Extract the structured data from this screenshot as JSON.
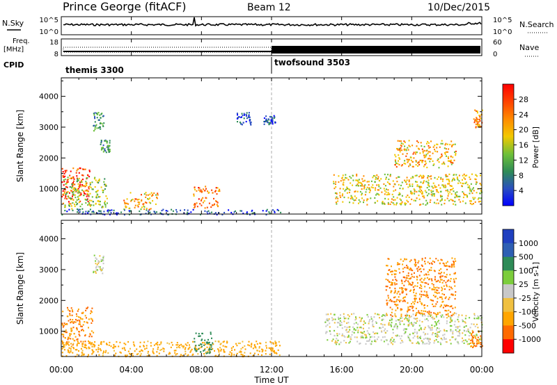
{
  "header": {
    "station": "Prince George (fitACF)",
    "beam": "Beam 12",
    "date": "10/Dec/2015"
  },
  "noise_panel": {
    "left_label": "N.Sky",
    "right_label": "N.Search",
    "left_ticks": [
      "10^5",
      "10^0"
    ],
    "right_ticks": [
      "10^5",
      "10^0"
    ]
  },
  "freq_panel": {
    "left_label_line1": "Freq.",
    "left_label_line2": "[MHz]",
    "right_label": "Nave",
    "left_ticks": [
      "18",
      "8"
    ],
    "right_ticks": [
      "60",
      "0"
    ],
    "cpid_label": "CPID"
  },
  "cpid_segments": [
    {
      "name": "themis 3300",
      "start_hour": 0
    },
    {
      "name": "twofsound 3503",
      "start_hour": 12
    }
  ],
  "time_axis": {
    "label": "Time UT",
    "ticks": [
      "00:00",
      "04:00",
      "08:00",
      "12:00",
      "16:00",
      "20:00",
      "00:00"
    ]
  },
  "colors": {
    "power": [
      "#0000ff",
      "#2a4ec0",
      "#2e8b57",
      "#6cbf3a",
      "#f2c800",
      "#ff8c00",
      "#ff4500",
      "#ff0000"
    ],
    "velocity": [
      "#1f3fbf",
      "#2e5fb3",
      "#2e8b57",
      "#7ccd3c",
      "#c8c8c8",
      "#f0c040",
      "#ffa500",
      "#ff6a00",
      "#ff0000"
    ]
  },
  "chart_data": [
    {
      "type": "heatmap",
      "name": "Power",
      "ylabel": "Slant Range [km]",
      "yticks": [
        1000,
        2000,
        3000,
        4000
      ],
      "ylim": [
        180,
        4600
      ],
      "xlim": [
        0,
        24
      ],
      "colorbar_label": "Power [dB]",
      "colorbar_ticks": [
        "28",
        "24",
        "20",
        "16",
        "12",
        "8",
        "4"
      ],
      "colorbar_range": [
        0,
        32
      ],
      "regions": [
        {
          "x": [
            0,
            1.6
          ],
          "y": [
            500,
            1700
          ],
          "value": 27
        },
        {
          "x": [
            0.1,
            2.6
          ],
          "y": [
            350,
            1400
          ],
          "value": 15
        },
        {
          "x": [
            0,
            12.5
          ],
          "y": [
            180,
            350
          ],
          "value": 6
        },
        {
          "x": [
            1.8,
            2.4
          ],
          "y": [
            2900,
            3500
          ],
          "value": 11
        },
        {
          "x": [
            2.2,
            2.8
          ],
          "y": [
            2200,
            2600
          ],
          "value": 10
        },
        {
          "x": [
            3.5,
            5.5
          ],
          "y": [
            350,
            900
          ],
          "value": 20
        },
        {
          "x": [
            7.5,
            9.0
          ],
          "y": [
            400,
            1100
          ],
          "value": 24
        },
        {
          "x": [
            10.0,
            10.8
          ],
          "y": [
            3100,
            3500
          ],
          "value": 6
        },
        {
          "x": [
            11.5,
            12.2
          ],
          "y": [
            3100,
            3400
          ],
          "value": 6
        },
        {
          "x": [
            15.5,
            24
          ],
          "y": [
            500,
            1500
          ],
          "value": 18
        },
        {
          "x": [
            19.0,
            22.5
          ],
          "y": [
            1700,
            2600
          ],
          "value": 20
        },
        {
          "x": [
            23.5,
            24
          ],
          "y": [
            3000,
            3600
          ],
          "value": 22
        }
      ]
    },
    {
      "type": "heatmap",
      "name": "Velocity",
      "ylabel": "Slant Range [km]",
      "yticks": [
        1000,
        2000,
        3000,
        4000
      ],
      "ylim": [
        180,
        4600
      ],
      "xlim": [
        0,
        24
      ],
      "colorbar_label": "Velocity [m s-1]",
      "colorbar_ticks": [
        "1000",
        "500",
        "100",
        "25",
        "-25",
        "-100",
        "-500",
        "-1000"
      ],
      "regions": [
        {
          "x": [
            0,
            1.8
          ],
          "y": [
            500,
            1800
          ],
          "value": -300
        },
        {
          "x": [
            0,
            12.5
          ],
          "y": [
            200,
            700
          ],
          "value": -100
        },
        {
          "x": [
            1.8,
            2.4
          ],
          "y": [
            2900,
            3500
          ],
          "value": 0
        },
        {
          "x": [
            7.5,
            8.6
          ],
          "y": [
            300,
            1000
          ],
          "value": 200
        },
        {
          "x": [
            15.0,
            24
          ],
          "y": [
            600,
            1600
          ],
          "value": 0
        },
        {
          "x": [
            18.5,
            22.5
          ],
          "y": [
            1500,
            3400
          ],
          "value": -300
        },
        {
          "x": [
            23.3,
            24
          ],
          "y": [
            500,
            1000
          ],
          "value": -300
        }
      ]
    }
  ]
}
